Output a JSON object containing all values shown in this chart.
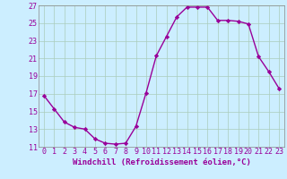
{
  "x": [
    0,
    1,
    2,
    3,
    4,
    5,
    6,
    7,
    8,
    9,
    10,
    11,
    12,
    13,
    14,
    15,
    16,
    17,
    18,
    19,
    20,
    21,
    22,
    23
  ],
  "y": [
    16.8,
    15.3,
    13.8,
    13.2,
    13.0,
    11.9,
    11.4,
    11.3,
    11.4,
    13.3,
    17.1,
    21.3,
    23.5,
    25.7,
    26.8,
    26.8,
    26.8,
    25.3,
    25.3,
    25.2,
    24.9,
    21.2,
    19.5,
    17.6
  ],
  "line_color": "#990099",
  "marker": "D",
  "markersize": 2.2,
  "linewidth": 1.0,
  "xlabel": "Windchill (Refroidissement éolien,°C)",
  "xlabel_fontsize": 6.5,
  "bg_color": "#cceeff",
  "grid_color": "#aaccbb",
  "tick_label_color": "#990099",
  "tick_fontsize": 6.0,
  "ylim": [
    11,
    27
  ],
  "xlim": [
    -0.5,
    23.5
  ],
  "yticks": [
    11,
    13,
    15,
    17,
    19,
    21,
    23,
    25,
    27
  ],
  "xticks": [
    0,
    1,
    2,
    3,
    4,
    5,
    6,
    7,
    8,
    9,
    10,
    11,
    12,
    13,
    14,
    15,
    16,
    17,
    18,
    19,
    20,
    21,
    22,
    23
  ]
}
